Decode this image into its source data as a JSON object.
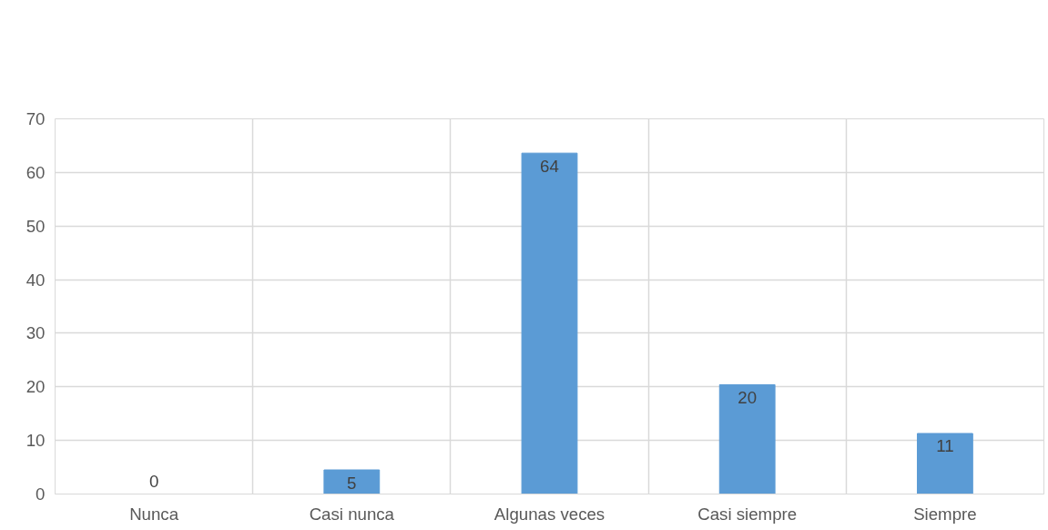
{
  "chart_data": {
    "type": "bar",
    "categories": [
      "Nunca",
      "Casi nunca",
      "Algunas veces",
      "Casi siempre",
      "Siempre"
    ],
    "values": [
      0,
      4.5,
      63.6,
      20.4,
      11.3
    ],
    "value_labels": [
      "0",
      "5",
      "64",
      "20",
      "11"
    ],
    "color": "#5b9bd5",
    "ylim": [
      0,
      70
    ],
    "yticks": [
      0,
      10,
      20,
      30,
      40,
      50,
      60,
      70
    ],
    "grid": true
  }
}
